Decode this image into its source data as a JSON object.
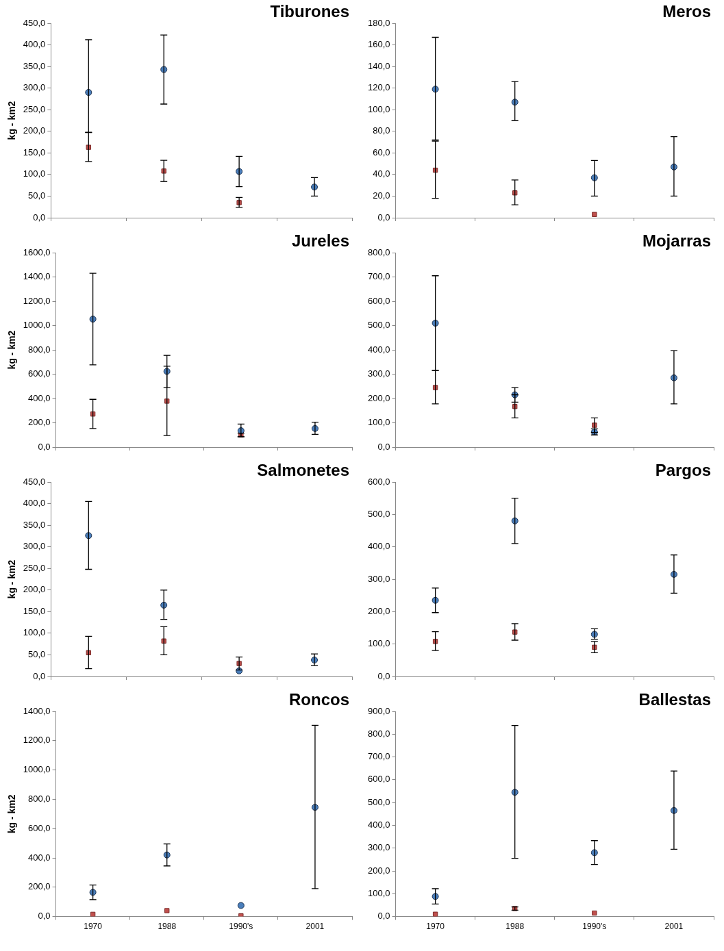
{
  "chart_data": [
    {
      "type": "scatter",
      "title": "Tiburones",
      "ylabel": "kg - km2",
      "tick_labels": "y",
      "categories": [
        "1970",
        "1988",
        "1990's",
        "2001"
      ],
      "ylim": [
        0,
        450
      ],
      "yticks": [
        {
          "value": 0,
          "label": "0,0"
        },
        {
          "value": 50,
          "label": "50,0"
        },
        {
          "value": 100,
          "label": "100,0"
        },
        {
          "value": 150,
          "label": "150,0"
        },
        {
          "value": 200,
          "label": "200,0"
        },
        {
          "value": 250,
          "label": "250,0"
        },
        {
          "value": 300,
          "label": "300,0"
        },
        {
          "value": 350,
          "label": "350,0"
        },
        {
          "value": 400,
          "label": "400,0"
        },
        {
          "value": 450,
          "label": "450,0"
        }
      ],
      "series": [
        {
          "color": "#4a7ebb",
          "marker": "circle",
          "values": [
            290,
            343,
            107,
            71
          ],
          "error_low": [
            198,
            263,
            72,
            50
          ],
          "error_high": [
            412,
            423,
            142,
            93
          ]
        },
        {
          "color": "#c0504d",
          "marker": "square",
          "values": [
            163,
            108,
            35,
            null
          ],
          "error_low": [
            130,
            84,
            24,
            null
          ],
          "error_high": [
            197,
            133,
            47,
            null
          ]
        }
      ]
    },
    {
      "type": "scatter",
      "title": "Meros",
      "tick_labels": "y",
      "categories": [
        "1970",
        "1988",
        "1990's",
        "2001"
      ],
      "ylim": [
        0,
        180
      ],
      "yticks": [
        {
          "value": 0,
          "label": "0,0"
        },
        {
          "value": 20,
          "label": "20,0"
        },
        {
          "value": 40,
          "label": "40,0"
        },
        {
          "value": 60,
          "label": "60,0"
        },
        {
          "value": 80,
          "label": "80,0"
        },
        {
          "value": 100,
          "label": "100,0"
        },
        {
          "value": 120,
          "label": "120,0"
        },
        {
          "value": 140,
          "label": "140,0"
        },
        {
          "value": 160,
          "label": "160,0"
        },
        {
          "value": 180,
          "label": "180,0"
        }
      ],
      "series": [
        {
          "color": "#4a7ebb",
          "marker": "circle",
          "values": [
            119,
            107,
            37,
            47
          ],
          "error_low": [
            72,
            90,
            20,
            20
          ],
          "error_high": [
            167,
            126,
            53,
            75
          ]
        },
        {
          "color": "#c0504d",
          "marker": "square",
          "values": [
            44,
            23,
            3,
            null
          ],
          "error_low": [
            18,
            12,
            null,
            null
          ],
          "error_high": [
            71,
            35,
            null,
            null
          ]
        }
      ]
    },
    {
      "type": "scatter",
      "title": "Jureles",
      "ylabel": "kg - km2",
      "tick_labels": "y",
      "categories": [
        "1970",
        "1988",
        "1990's",
        "2001"
      ],
      "ylim": [
        0,
        1600
      ],
      "yticks": [
        {
          "value": 0,
          "label": "0,0"
        },
        {
          "value": 200,
          "label": "200,0"
        },
        {
          "value": 400,
          "label": "400,0"
        },
        {
          "value": 600,
          "label": "600,0"
        },
        {
          "value": 800,
          "label": "800,0"
        },
        {
          "value": 1000,
          "label": "1000,0"
        },
        {
          "value": 1200,
          "label": "1200,0"
        },
        {
          "value": 1400,
          "label": "1400,0"
        },
        {
          "value": 1600,
          "label": "1600,0"
        }
      ],
      "series": [
        {
          "color": "#4a7ebb",
          "marker": "circle",
          "values": [
            1053,
            623,
            135,
            153
          ],
          "error_low": [
            677,
            490,
            85,
            105
          ],
          "error_high": [
            1430,
            755,
            190,
            205
          ]
        },
        {
          "color": "#c0504d",
          "marker": "square",
          "values": [
            272,
            378,
            100,
            null
          ],
          "error_low": [
            153,
            95,
            85,
            null
          ],
          "error_high": [
            393,
            665,
            115,
            null
          ]
        }
      ]
    },
    {
      "type": "scatter",
      "title": "Mojarras",
      "tick_labels": "y",
      "categories": [
        "1970",
        "1988",
        "1990's",
        "2001"
      ],
      "ylim": [
        0,
        800
      ],
      "yticks": [
        {
          "value": 0,
          "label": "0,0"
        },
        {
          "value": 100,
          "label": "100,0"
        },
        {
          "value": 200,
          "label": "200,0"
        },
        {
          "value": 300,
          "label": "300,0"
        },
        {
          "value": 400,
          "label": "400,0"
        },
        {
          "value": 500,
          "label": "500,0"
        },
        {
          "value": 600,
          "label": "600,0"
        },
        {
          "value": 700,
          "label": "700,0"
        },
        {
          "value": 800,
          "label": "800,0"
        }
      ],
      "series": [
        {
          "color": "#4a7ebb",
          "marker": "circle",
          "values": [
            510,
            215,
            62,
            285
          ],
          "error_low": [
            315,
            185,
            50,
            178
          ],
          "error_high": [
            705,
            245,
            75,
            397
          ]
        },
        {
          "color": "#c0504d",
          "marker": "square",
          "values": [
            245,
            167,
            90,
            null
          ],
          "error_low": [
            178,
            120,
            60,
            null
          ],
          "error_high": [
            315,
            215,
            120,
            null
          ]
        }
      ]
    },
    {
      "type": "scatter",
      "title": "Salmonetes",
      "ylabel": "kg - km2",
      "tick_labels": "y",
      "categories": [
        "1970",
        "1988",
        "1990's",
        "2001"
      ],
      "ylim": [
        0,
        450
      ],
      "yticks": [
        {
          "value": 0,
          "label": "0,0"
        },
        {
          "value": 50,
          "label": "50,0"
        },
        {
          "value": 100,
          "label": "100,0"
        },
        {
          "value": 150,
          "label": "150,0"
        },
        {
          "value": 200,
          "label": "200,0"
        },
        {
          "value": 250,
          "label": "250,0"
        },
        {
          "value": 300,
          "label": "300,0"
        },
        {
          "value": 350,
          "label": "350,0"
        },
        {
          "value": 400,
          "label": "400,0"
        },
        {
          "value": 450,
          "label": "450,0"
        }
      ],
      "series": [
        {
          "color": "#4a7ebb",
          "marker": "circle",
          "values": [
            326,
            165,
            13,
            38
          ],
          "error_low": [
            248,
            132,
            null,
            25
          ],
          "error_high": [
            405,
            200,
            null,
            52
          ]
        },
        {
          "color": "#c0504d",
          "marker": "square",
          "values": [
            55,
            82,
            30,
            null
          ],
          "error_low": [
            18,
            50,
            15,
            null
          ],
          "error_high": [
            93,
            115,
            45,
            null
          ]
        }
      ]
    },
    {
      "type": "scatter",
      "title": "Pargos",
      "tick_labels": "y",
      "categories": [
        "1970",
        "1988",
        "1990's",
        "2001"
      ],
      "ylim": [
        0,
        600
      ],
      "yticks": [
        {
          "value": 0,
          "label": "0,0"
        },
        {
          "value": 100,
          "label": "100,0"
        },
        {
          "value": 200,
          "label": "200,0"
        },
        {
          "value": 300,
          "label": "300,0"
        },
        {
          "value": 400,
          "label": "400,0"
        },
        {
          "value": 500,
          "label": "500,0"
        },
        {
          "value": 600,
          "label": "600,0"
        }
      ],
      "series": [
        {
          "color": "#4a7ebb",
          "marker": "circle",
          "values": [
            235,
            480,
            130,
            315
          ],
          "error_low": [
            197,
            410,
            115,
            257
          ],
          "error_high": [
            273,
            550,
            147,
            375
          ]
        },
        {
          "color": "#c0504d",
          "marker": "square",
          "values": [
            108,
            137,
            90,
            null
          ],
          "error_low": [
            80,
            112,
            73,
            null
          ],
          "error_high": [
            138,
            163,
            108,
            null
          ]
        }
      ]
    },
    {
      "type": "scatter",
      "title": "Roncos",
      "ylabel": "kg - km2",
      "categories": [
        "1970",
        "1988",
        "1990's",
        "2001"
      ],
      "ylim": [
        0,
        1400
      ],
      "yticks": [
        {
          "value": 0,
          "label": "0,0"
        },
        {
          "value": 200,
          "label": "200,0"
        },
        {
          "value": 400,
          "label": "400,0"
        },
        {
          "value": 600,
          "label": "600,0"
        },
        {
          "value": 800,
          "label": "800,0"
        },
        {
          "value": 1000,
          "label": "1000,0"
        },
        {
          "value": 1200,
          "label": "1200,0"
        },
        {
          "value": 1400,
          "label": "1400,0"
        }
      ],
      "series": [
        {
          "color": "#4a7ebb",
          "marker": "circle",
          "values": [
            165,
            420,
            75,
            745
          ],
          "error_low": [
            115,
            345,
            null,
            190
          ],
          "error_high": [
            215,
            495,
            null,
            1305
          ]
        },
        {
          "color": "#c0504d",
          "marker": "square",
          "values": [
            15,
            40,
            5,
            null
          ],
          "error_low": [
            null,
            null,
            null,
            null
          ],
          "error_high": [
            null,
            null,
            null,
            null
          ]
        }
      ]
    },
    {
      "type": "scatter",
      "title": "Ballestas",
      "categories": [
        "1970",
        "1988",
        "1990's",
        "2001"
      ],
      "ylim": [
        0,
        900
      ],
      "yticks": [
        {
          "value": 0,
          "label": "0,0"
        },
        {
          "value": 100,
          "label": "100,0"
        },
        {
          "value": 200,
          "label": "200,0"
        },
        {
          "value": 300,
          "label": "300,0"
        },
        {
          "value": 400,
          "label": "400,0"
        },
        {
          "value": 500,
          "label": "500,0"
        },
        {
          "value": 600,
          "label": "600,0"
        },
        {
          "value": 700,
          "label": "700,0"
        },
        {
          "value": 800,
          "label": "800,0"
        },
        {
          "value": 900,
          "label": "900,0"
        }
      ],
      "series": [
        {
          "color": "#4a7ebb",
          "marker": "circle",
          "values": [
            88,
            545,
            280,
            465
          ],
          "error_low": [
            55,
            255,
            228,
            295
          ],
          "error_high": [
            122,
            838,
            333,
            638
          ]
        },
        {
          "color": "#c0504d",
          "marker": "square",
          "values": [
            10,
            35,
            15,
            null
          ],
          "error_low": [
            null,
            28,
            null,
            null
          ],
          "error_high": [
            null,
            42,
            null,
            null
          ]
        }
      ]
    }
  ]
}
